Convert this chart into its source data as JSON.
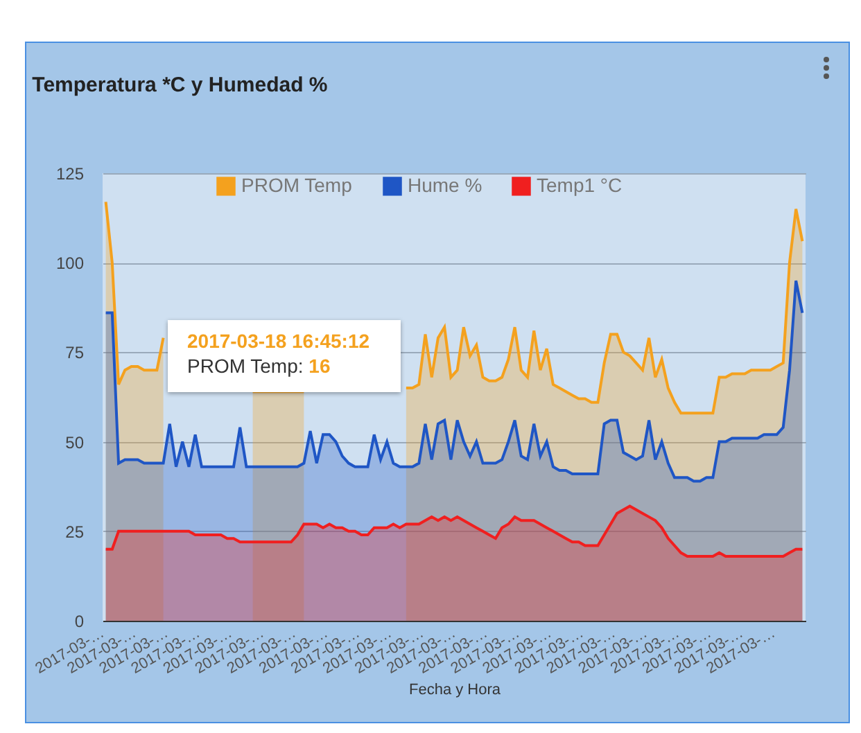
{
  "chart_data": {
    "type": "area",
    "title": "Temperatura *C y Humedad %",
    "xlabel": "Fecha y Hora",
    "categories": [
      "2017-03-…",
      null,
      null,
      null,
      null,
      "2017-03-…",
      null,
      null,
      null,
      null,
      "2017-03-…",
      null,
      null,
      null,
      null,
      "2017-03-…",
      null,
      null,
      null,
      null,
      "2017-03-…",
      null,
      null,
      null,
      null,
      "2017-03-…",
      null,
      null,
      null,
      null,
      "2017-03-…",
      null,
      null,
      null,
      null,
      "2017-03-…",
      null,
      null,
      null,
      null,
      "2017-03-…",
      null,
      null,
      null,
      null,
      "2017-03-…",
      null,
      null,
      null,
      null,
      "2017-03-…",
      null,
      null,
      null,
      null,
      "2017-03-…",
      null,
      null,
      null,
      null,
      "2017-03-…",
      null,
      null,
      null,
      null,
      "2017-03-…",
      null,
      null,
      null,
      null,
      "2017-03-…",
      null,
      null,
      null,
      null,
      "2017-03-…",
      null,
      null,
      null,
      null,
      "2017-03-…",
      null,
      null,
      null,
      null,
      "2017-03-…",
      null,
      null,
      null,
      null,
      "2017-03-…",
      null,
      null,
      null,
      null,
      "2017-03-…",
      null,
      null,
      null,
      null,
      "2017-03-…",
      null,
      null,
      null,
      null,
      "2017-03-…",
      null,
      null,
      null,
      null
    ],
    "series": [
      {
        "name": "PROM Temp",
        "color": "#f4a11e",
        "values": [
          117,
          100,
          66,
          70,
          71,
          71,
          70,
          70,
          70,
          79,
          null,
          null,
          null,
          null,
          null,
          null,
          null,
          null,
          null,
          null,
          null,
          null,
          null,
          64,
          64,
          64,
          64,
          64,
          64,
          64,
          64,
          64,
          null,
          null,
          null,
          null,
          null,
          null,
          null,
          null,
          null,
          null,
          null,
          null,
          null,
          null,
          null,
          65,
          65,
          66,
          80,
          68,
          79,
          82,
          68,
          70,
          82,
          74,
          77,
          68,
          67,
          67,
          68,
          73,
          82,
          70,
          68,
          81,
          70,
          76,
          66,
          65,
          64,
          63,
          62,
          62,
          61,
          61,
          72,
          80,
          80,
          75,
          74,
          72,
          70,
          79,
          68,
          73,
          65,
          61,
          58,
          58,
          58,
          58,
          58,
          58,
          68,
          68,
          69,
          69,
          69,
          70,
          70,
          70,
          70,
          71,
          72,
          100,
          115,
          106
        ]
      },
      {
        "name": "Hume %",
        "color": "#1f56c5",
        "values": [
          86,
          86,
          44,
          45,
          45,
          45,
          44,
          44,
          44,
          44,
          55,
          43,
          50,
          43,
          52,
          43,
          43,
          43,
          43,
          43,
          43,
          54,
          43,
          43,
          43,
          43,
          43,
          43,
          43,
          43,
          43,
          44,
          53,
          44,
          52,
          52,
          50,
          46,
          44,
          43,
          43,
          43,
          52,
          45,
          50,
          44,
          43,
          43,
          43,
          44,
          55,
          45,
          55,
          56,
          45,
          56,
          50,
          46,
          50,
          44,
          44,
          44,
          45,
          50,
          56,
          46,
          45,
          55,
          46,
          50,
          43,
          42,
          42,
          41,
          41,
          41,
          41,
          41,
          55,
          56,
          56,
          47,
          46,
          45,
          46,
          56,
          45,
          50,
          44,
          40,
          40,
          40,
          39,
          39,
          40,
          40,
          50,
          50,
          51,
          51,
          51,
          51,
          51,
          52,
          52,
          52,
          54,
          70,
          95,
          86
        ]
      },
      {
        "name": "Temp1 °C",
        "color": "#f01f1f",
        "values": [
          20,
          20,
          25,
          25,
          25,
          25,
          25,
          25,
          25,
          25,
          25,
          25,
          25,
          25,
          24,
          24,
          24,
          24,
          24,
          23,
          23,
          22,
          22,
          22,
          22,
          22,
          22,
          22,
          22,
          22,
          24,
          27,
          27,
          27,
          26,
          27,
          26,
          26,
          25,
          25,
          24,
          24,
          26,
          26,
          26,
          27,
          26,
          27,
          27,
          27,
          28,
          29,
          28,
          29,
          28,
          29,
          28,
          27,
          26,
          25,
          24,
          23,
          26,
          27,
          29,
          28,
          28,
          28,
          27,
          26,
          25,
          24,
          23,
          22,
          22,
          21,
          21,
          21,
          24,
          27,
          30,
          31,
          32,
          31,
          30,
          29,
          28,
          26,
          23,
          21,
          19,
          18,
          18,
          18,
          18,
          18,
          19,
          18,
          18,
          18,
          18,
          18,
          18,
          18,
          18,
          18,
          18,
          19,
          20,
          20
        ]
      }
    ],
    "ylim": [
      0,
      125
    ],
    "yticks": [
      0,
      25,
      50,
      75,
      100,
      125
    ],
    "grid": "y",
    "legend": "top",
    "annotations": [
      "2017-03-18 16:45:12",
      "PROM Temp:",
      "16"
    ]
  }
}
